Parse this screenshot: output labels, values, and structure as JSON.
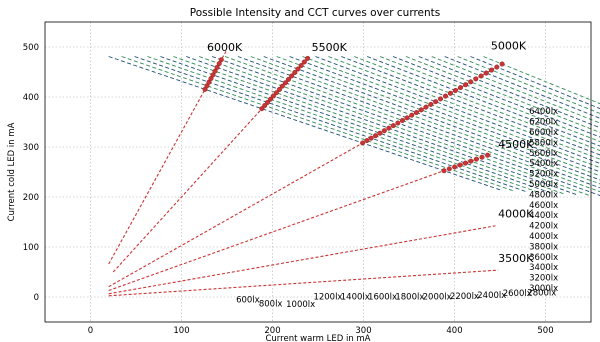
{
  "chart_data": {
    "type": "line",
    "title": "Possible Intensity and CCT curves over currents",
    "xlabel": "Current warm LED in mA",
    "ylabel": "Current cold LED in mA",
    "xlim": [
      -50,
      550
    ],
    "ylim": [
      -50,
      550
    ],
    "xticks": [
      0,
      100,
      200,
      300,
      400,
      500
    ],
    "yticks": [
      0,
      100,
      200,
      300,
      400,
      500
    ],
    "grid": true,
    "cct_curves": [
      {
        "name": "6000K",
        "label": "6000K",
        "label_at": [
          128,
          492
        ],
        "slope": 3.3,
        "x_range": [
          20,
          150
        ]
      },
      {
        "name": "5500K",
        "label": "5500K",
        "label_at": [
          243,
          492
        ],
        "slope": 2.0,
        "x_range": [
          25,
          240
        ]
      },
      {
        "name": "5000K",
        "label": "5000K",
        "label_at": [
          440,
          495
        ],
        "slope": 1.03,
        "x_range": [
          20,
          455
        ]
      },
      {
        "name": "4500K",
        "label": "4500K",
        "label_at": [
          448,
          298
        ],
        "slope": 0.65,
        "x_range": [
          20,
          440
        ]
      },
      {
        "name": "4000K",
        "label": "4000K",
        "label_at": [
          448,
          159
        ],
        "slope": 0.32,
        "x_range": [
          20,
          445
        ]
      },
      {
        "name": "3500K",
        "label": "3500K",
        "label_at": [
          448,
          70
        ],
        "slope": 0.12,
        "x_range": [
          20,
          448
        ]
      }
    ],
    "intensity_levels": [
      "600lx",
      "800lx",
      "1000lx",
      "1200lx",
      "1400lx",
      "1600lx",
      "1800lx",
      "2000lx",
      "2200lx",
      "2400lx",
      "2600lx",
      "2800lx",
      "3000lx",
      "3200lx",
      "3400lx",
      "3600lx",
      "3800lx",
      "4000lx",
      "4200lx",
      "4400lx",
      "4600lx",
      "4800lx",
      "5000lx",
      "5200lx",
      "5400lx",
      "5600lx",
      "5800lx",
      "6000lx",
      "6200lx",
      "6400lx"
    ],
    "colors": {
      "lux_line": "#1f4e79",
      "lux_line_alt": "#2e8b57",
      "cct_line": "#cc3333",
      "marker": "#cc3333",
      "grid": "#b0b0b0"
    }
  }
}
